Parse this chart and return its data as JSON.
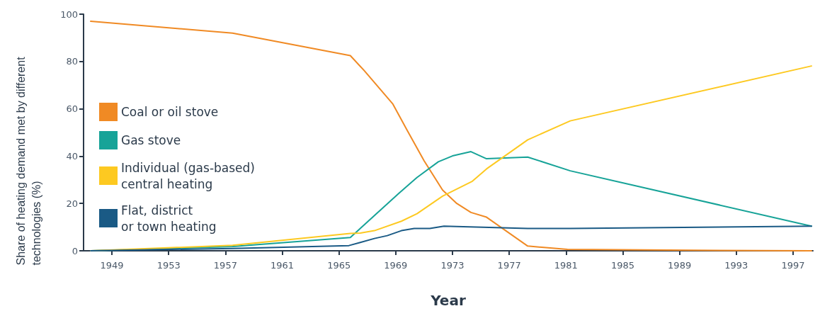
{
  "chart_data": {
    "type": "line",
    "xlabel": "Year",
    "ylabel": "Share of heating demand met by different technologies (%)",
    "xlim": [
      1947,
      1998.4
    ],
    "xticks": [
      1949,
      1953,
      1957,
      1961,
      1965,
      1969,
      1973,
      1977,
      1981,
      1985,
      1989,
      1993,
      1997
    ],
    "ylim": [
      0,
      100
    ],
    "yticks": [
      0,
      20,
      40,
      60,
      80,
      100
    ],
    "grid": false,
    "legend": "left",
    "marker": "none",
    "line_style": "solid",
    "series": [
      {
        "name": "Coal or oil stove",
        "color": "#f08a24",
        "x": [
          1947.5,
          1957.5,
          1965.8,
          1966.8,
          1968.8,
          1969.8,
          1971,
          1972.3,
          1973.3,
          1974.3,
          1975.4,
          1978.3,
          1981.1,
          1990,
          1998.3
        ],
        "values": [
          97,
          92,
          82.5,
          76,
          62,
          51,
          38,
          25.7,
          20,
          16.2,
          14.2,
          2,
          0.6,
          0.2,
          0
        ]
      },
      {
        "name": "Gas stove",
        "color": "#17a398",
        "x": [
          1947.5,
          1957.5,
          1965.8,
          1969.2,
          1970.5,
          1972,
          1973,
          1974.3,
          1975.4,
          1978.3,
          1981.3,
          1998.3
        ],
        "values": [
          0,
          1.8,
          5.6,
          24.2,
          31,
          37.6,
          40.1,
          41.9,
          38.9,
          39.6,
          33.8,
          10.4
        ]
      },
      {
        "name": "Individual (gas-based) central heating",
        "color": "#fdc921",
        "x": [
          1947.5,
          1957.5,
          1965.8,
          1966.5,
          1967.5,
          1969.4,
          1970.5,
          1972.3,
          1974.4,
          1975.4,
          1978.3,
          1981.3,
          1998.3
        ],
        "values": [
          0,
          2.3,
          7.3,
          7.5,
          8.5,
          12.5,
          15.7,
          23.1,
          29.4,
          34.6,
          46.9,
          54.9,
          78.1
        ]
      },
      {
        "name": "Flat, district or town heating",
        "color": "#1a5a85",
        "x": [
          1947.5,
          1957.5,
          1965.7,
          1966.5,
          1967.5,
          1968.4,
          1969.4,
          1970.3,
          1971.4,
          1972.4,
          1978.3,
          1981.3,
          1998.3
        ],
        "values": [
          0,
          1,
          2.2,
          3.5,
          5.2,
          6.4,
          8.5,
          9.4,
          9.4,
          10.4,
          9.4,
          9.4,
          10.4
        ]
      }
    ]
  }
}
